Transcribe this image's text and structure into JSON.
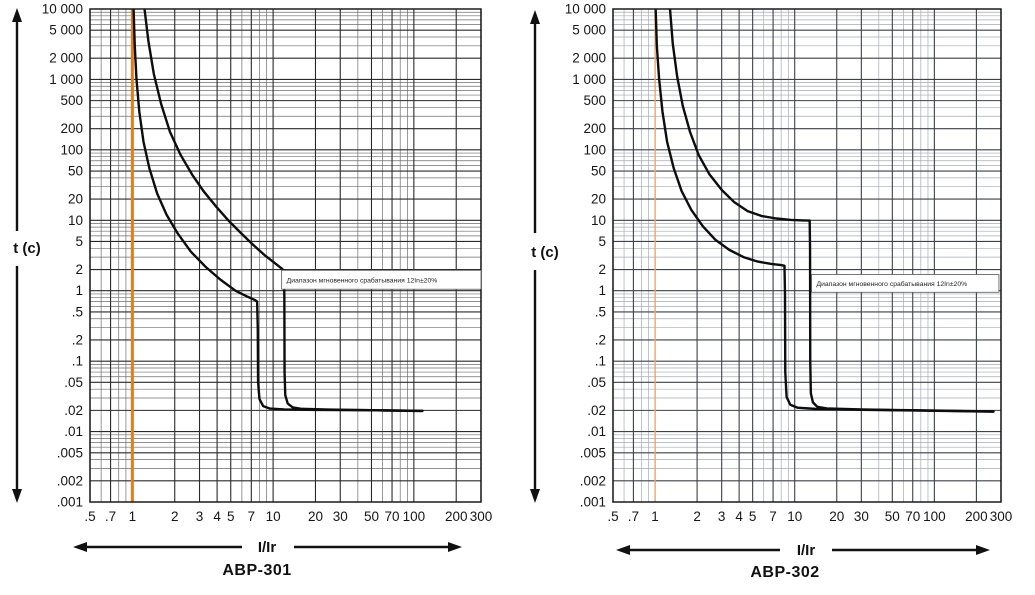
{
  "figure": {
    "background": "#ffffff"
  },
  "chart_data": [
    {
      "type": "line",
      "title": "АВР-301",
      "xlabel": "I/Ir",
      "ylabel": "t (c)",
      "x_scale": "log",
      "y_scale": "log",
      "xlim": [
        0.5,
        300
      ],
      "ylim": [
        0.001,
        10000
      ],
      "grid": true,
      "x_ticks": [
        [
          0.5,
          ".5"
        ],
        [
          0.7,
          ".7"
        ],
        [
          1,
          "1"
        ],
        [
          2,
          "2"
        ],
        [
          3,
          "3"
        ],
        [
          4,
          "4"
        ],
        [
          5,
          "5"
        ],
        [
          7,
          "7"
        ],
        [
          10,
          "10"
        ],
        [
          20,
          "20"
        ],
        [
          30,
          "30"
        ],
        [
          50,
          "50"
        ],
        [
          70,
          "70"
        ],
        [
          100,
          "100"
        ],
        [
          200,
          "200"
        ],
        [
          300,
          "300"
        ]
      ],
      "y_ticks": [
        [
          10000,
          "10 000"
        ],
        [
          5000,
          "5 000"
        ],
        [
          2000,
          "2 000"
        ],
        [
          1000,
          "1 000"
        ],
        [
          500,
          "500"
        ],
        [
          200,
          "200"
        ],
        [
          100,
          "100"
        ],
        [
          50,
          "50"
        ],
        [
          20,
          "20"
        ],
        [
          10,
          "10"
        ],
        [
          5,
          "5"
        ],
        [
          2,
          "2"
        ],
        [
          1,
          "1"
        ],
        [
          0.5,
          ".5"
        ],
        [
          0.2,
          ".2"
        ],
        [
          0.1,
          ".1"
        ],
        [
          0.05,
          ".05"
        ],
        [
          0.02,
          ".02"
        ],
        [
          0.01,
          ".01"
        ],
        [
          0.005,
          ".005"
        ],
        [
          0.002,
          ".002"
        ],
        [
          0.001,
          ".001"
        ]
      ],
      "reference_line": {
        "x": 1,
        "color": "#e87a1e",
        "width": 3
      },
      "annotation": {
        "text": "Диапазон мгновенного срабатывания 12In±20%",
        "x_range": [
          11.5,
          300
        ],
        "t_range": [
          1.95,
          1.05
        ]
      },
      "instantaneous_trip": {
        "lower_x": 7.7,
        "upper_x": 12,
        "final_time_s": 0.02
      },
      "colors": {
        "curve": "#0d0d0d",
        "grid_major": "#2a2a2a",
        "grid_minor": "#6e6e6e",
        "border": "#1a1a1a"
      },
      "series": [
        {
          "name": "lower-limit",
          "points": [
            [
              1.02,
              10000
            ],
            [
              1.04,
              3000
            ],
            [
              1.07,
              1000
            ],
            [
              1.12,
              350
            ],
            [
              1.2,
              130
            ],
            [
              1.32,
              55
            ],
            [
              1.5,
              24
            ],
            [
              1.75,
              12
            ],
            [
              2.1,
              6.5
            ],
            [
              2.6,
              3.6
            ],
            [
              3.3,
              2.2
            ],
            [
              4.2,
              1.45
            ],
            [
              5.4,
              1.0
            ],
            [
              6.6,
              0.82
            ],
            [
              7.4,
              0.74
            ],
            [
              7.7,
              0.7
            ],
            [
              7.78,
              0.3
            ],
            [
              7.82,
              0.05
            ],
            [
              8.0,
              0.029
            ],
            [
              8.5,
              0.023
            ],
            [
              9.5,
              0.0212
            ],
            [
              12,
              0.0206
            ],
            [
              20,
              0.0203
            ],
            [
              50,
              0.0201
            ],
            [
              115,
              0.0196
            ]
          ]
        },
        {
          "name": "upper-limit",
          "points": [
            [
              1.22,
              10000
            ],
            [
              1.3,
              3500
            ],
            [
              1.42,
              1200
            ],
            [
              1.6,
              450
            ],
            [
              1.85,
              180
            ],
            [
              2.2,
              85
            ],
            [
              2.65,
              45
            ],
            [
              3.2,
              26
            ],
            [
              3.9,
              16
            ],
            [
              4.8,
              10
            ],
            [
              5.9,
              6.6
            ],
            [
              7.2,
              4.5
            ],
            [
              8.7,
              3.2
            ],
            [
              10.2,
              2.5
            ],
            [
              11.4,
              2.1
            ],
            [
              11.95,
              1.92
            ],
            [
              12.02,
              0.8
            ],
            [
              12.06,
              0.07
            ],
            [
              12.2,
              0.033
            ],
            [
              12.7,
              0.025
            ],
            [
              13.8,
              0.022
            ],
            [
              16,
              0.021
            ],
            [
              25,
              0.0205
            ],
            [
              60,
              0.02
            ],
            [
              115,
              0.0197
            ]
          ]
        }
      ]
    },
    {
      "type": "line",
      "title": "АВР-302",
      "xlabel": "I/Ir",
      "ylabel": "t (c)",
      "x_scale": "log",
      "y_scale": "log",
      "xlim": [
        0.5,
        300
      ],
      "ylim": [
        0.001,
        10000
      ],
      "grid": true,
      "x_ticks": [
        [
          0.5,
          ".5"
        ],
        [
          0.7,
          ".7"
        ],
        [
          1,
          "1"
        ],
        [
          2,
          "2"
        ],
        [
          3,
          "3"
        ],
        [
          4,
          "4"
        ],
        [
          5,
          "5"
        ],
        [
          7,
          "7"
        ],
        [
          10,
          "10"
        ],
        [
          20,
          "20"
        ],
        [
          30,
          "30"
        ],
        [
          50,
          "50"
        ],
        [
          70,
          "70"
        ],
        [
          100,
          "100"
        ],
        [
          200,
          "200"
        ],
        [
          300,
          "300"
        ]
      ],
      "y_ticks": [
        [
          10000,
          "10 000"
        ],
        [
          5000,
          "5 000"
        ],
        [
          2000,
          "2 000"
        ],
        [
          1000,
          "1 000"
        ],
        [
          500,
          "500"
        ],
        [
          200,
          "200"
        ],
        [
          100,
          "100"
        ],
        [
          50,
          "50"
        ],
        [
          20,
          "20"
        ],
        [
          10,
          "10"
        ],
        [
          5,
          "5"
        ],
        [
          2,
          "2"
        ],
        [
          1,
          "1"
        ],
        [
          0.5,
          ".5"
        ],
        [
          0.2,
          ".2"
        ],
        [
          0.1,
          ".1"
        ],
        [
          0.05,
          ".05"
        ],
        [
          0.02,
          ".02"
        ],
        [
          0.01,
          ".01"
        ],
        [
          0.005,
          ".005"
        ],
        [
          0.002,
          ".002"
        ],
        [
          0.001,
          ".001"
        ]
      ],
      "reference_line": {
        "x": 1,
        "color": "#edaa72",
        "width": 1.3
      },
      "annotation": {
        "text": "Диапазон мгновенного срабатывания 12In±20%",
        "x_range": [
          13.2,
          290
        ],
        "t_range": [
          1.7,
          0.95
        ]
      },
      "instantaneous_trip": {
        "lower_x": 8.5,
        "upper_x": 12.9,
        "final_time_s": 0.02
      },
      "colors": {
        "curve": "#0d0d0d",
        "grid_major": "#3a424a",
        "grid_minor": "#a4acb4",
        "border": "#1a1a1a"
      },
      "series": [
        {
          "name": "lower-limit",
          "points": [
            [
              1.01,
              10000
            ],
            [
              1.03,
              3000
            ],
            [
              1.07,
              1000
            ],
            [
              1.13,
              350
            ],
            [
              1.22,
              130
            ],
            [
              1.36,
              55
            ],
            [
              1.55,
              26
            ],
            [
              1.82,
              14
            ],
            [
              2.2,
              8.2
            ],
            [
              2.7,
              5.3
            ],
            [
              3.4,
              3.8
            ],
            [
              4.3,
              3.0
            ],
            [
              5.4,
              2.6
            ],
            [
              6.8,
              2.4
            ],
            [
              8.0,
              2.31
            ],
            [
              8.45,
              2.26
            ],
            [
              8.52,
              0.9
            ],
            [
              8.56,
              0.07
            ],
            [
              8.75,
              0.031
            ],
            [
              9.3,
              0.024
            ],
            [
              10.5,
              0.0218
            ],
            [
              14,
              0.021
            ],
            [
              30,
              0.0204
            ],
            [
              80,
              0.0199
            ],
            [
              265,
              0.0192
            ]
          ]
        },
        {
          "name": "upper-limit",
          "points": [
            [
              1.28,
              10000
            ],
            [
              1.34,
              3200
            ],
            [
              1.44,
              1100
            ],
            [
              1.58,
              420
            ],
            [
              1.78,
              180
            ],
            [
              2.05,
              85
            ],
            [
              2.45,
              45
            ],
            [
              3.0,
              27
            ],
            [
              3.7,
              18
            ],
            [
              4.6,
              13.5
            ],
            [
              5.8,
              11.5
            ],
            [
              7.4,
              10.6
            ],
            [
              9.4,
              10.1
            ],
            [
              11.5,
              9.95
            ],
            [
              12.8,
              9.9
            ],
            [
              12.88,
              4.0
            ],
            [
              12.92,
              0.1
            ],
            [
              13.05,
              0.035
            ],
            [
              13.5,
              0.026
            ],
            [
              14.5,
              0.0225
            ],
            [
              17,
              0.0213
            ],
            [
              30,
              0.0206
            ],
            [
              80,
              0.02
            ],
            [
              265,
              0.0193
            ]
          ]
        }
      ]
    }
  ]
}
